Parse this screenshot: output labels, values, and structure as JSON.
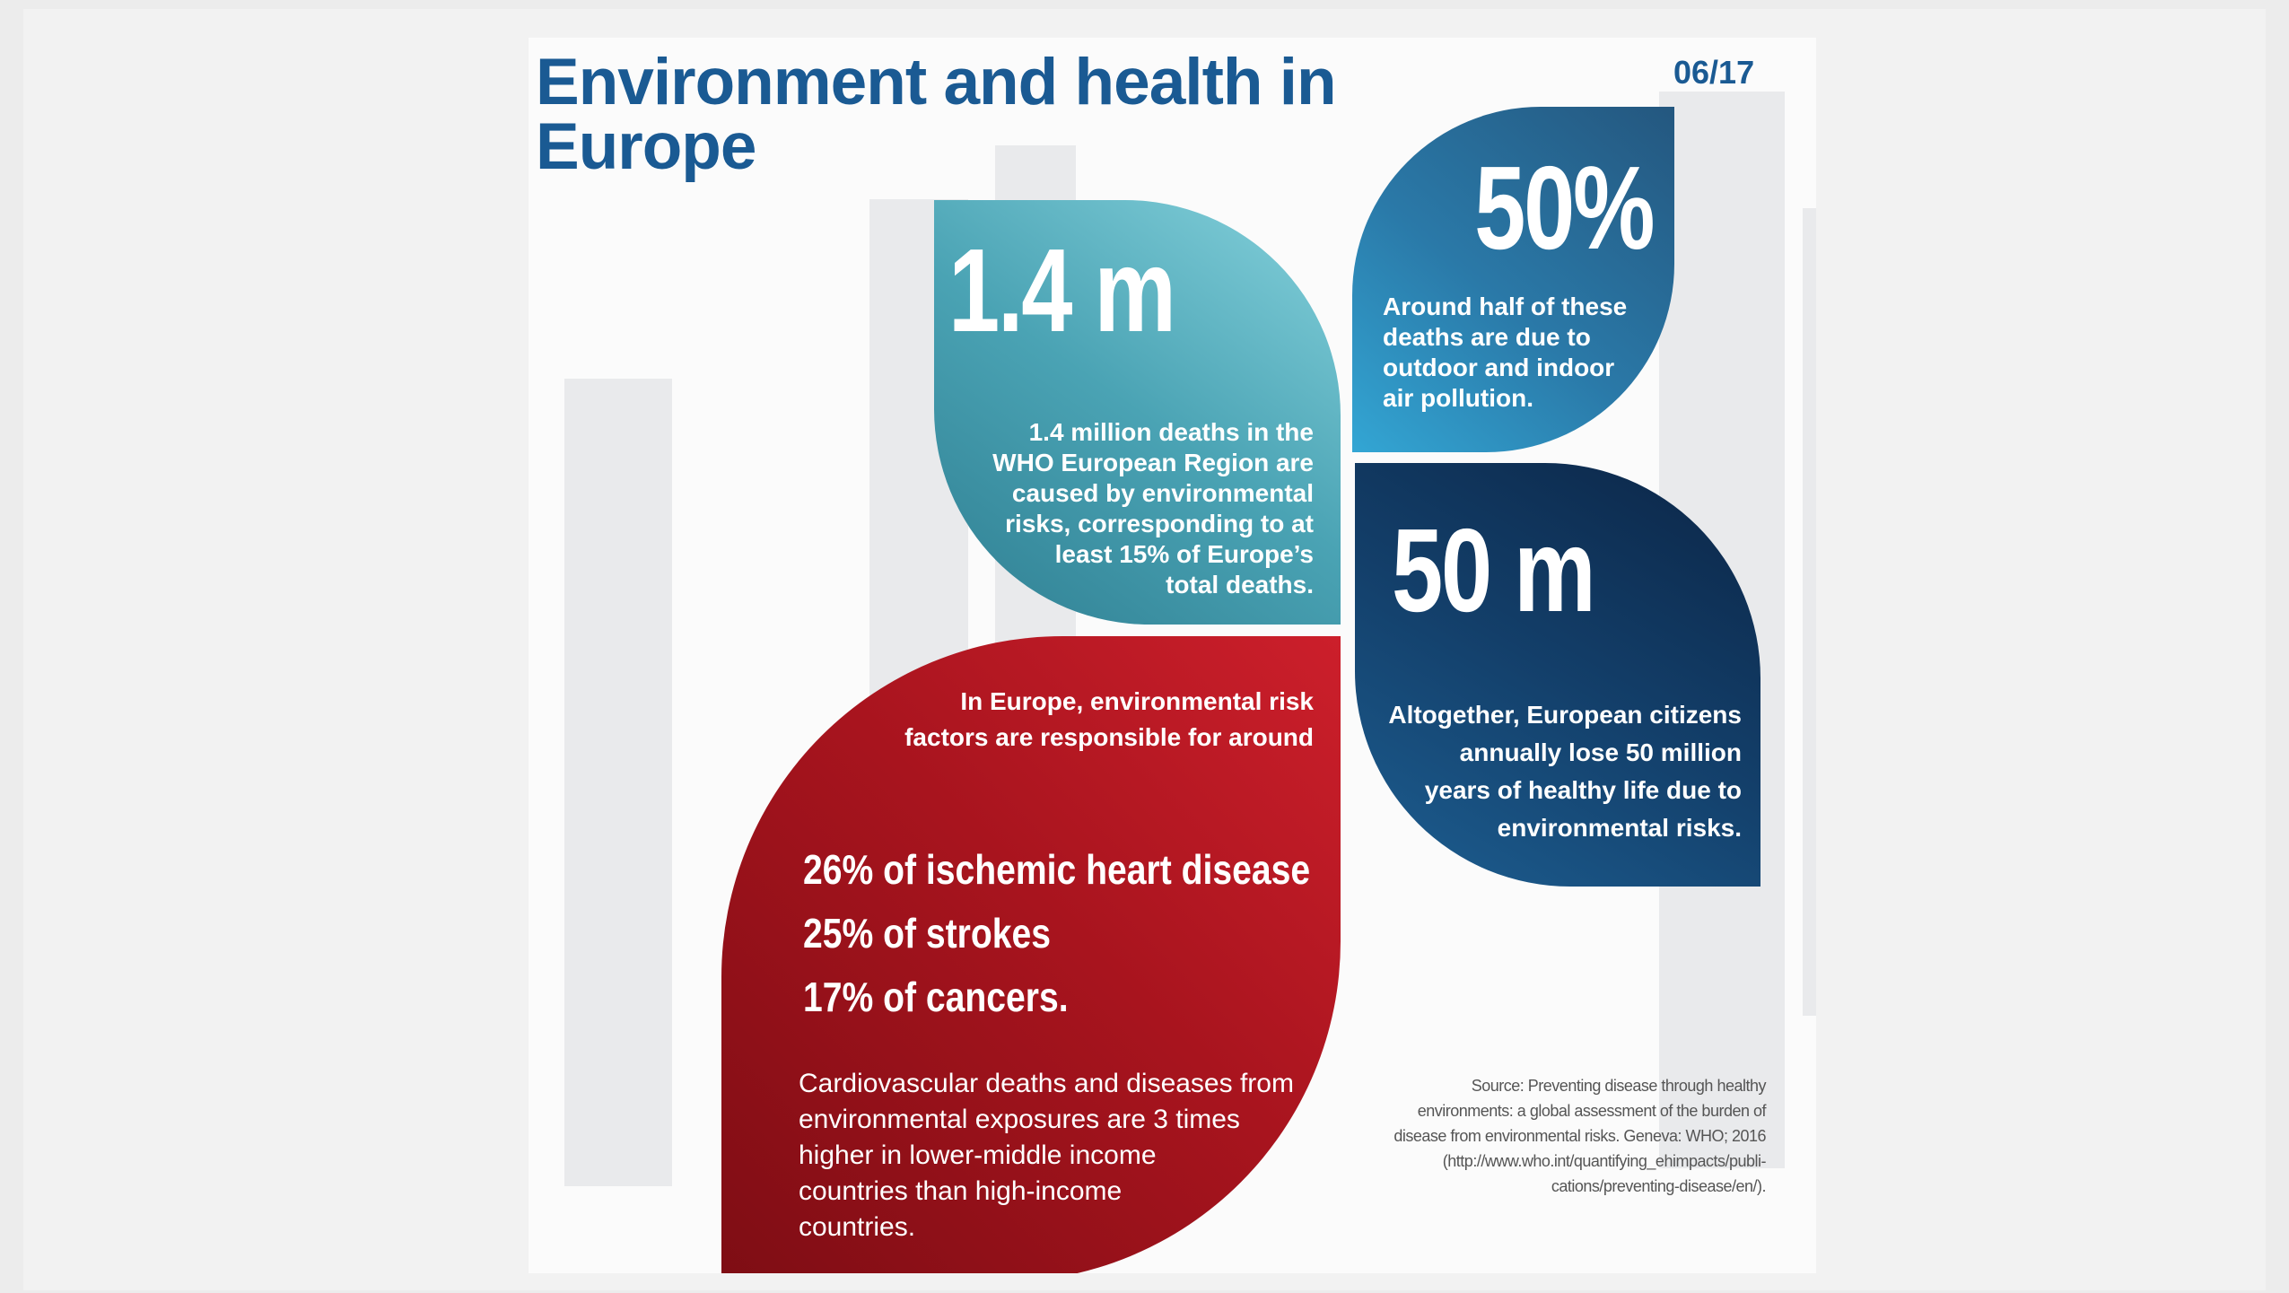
{
  "header": {
    "title": "Environment and health in Europe",
    "issue": "06/17"
  },
  "panels": [
    {
      "figure": "1.4 m",
      "text_lines": [
        "1.4 million deaths in the",
        "WHO European Region are",
        "caused by environmental",
        "risks, corresponding to at",
        "least 15% of Europe’s",
        "total deaths."
      ]
    },
    {
      "figure": "50%",
      "text_lines": [
        "Around half of these",
        "deaths are due to",
        "outdoor and indoor",
        "air pollution."
      ]
    },
    {
      "figure": "50 m",
      "text_lines": [
        "Altogether, European citizens",
        "annually lose 50 million",
        "years of healthy life due to",
        "environmental risks."
      ]
    }
  ],
  "risk_factors": {
    "intro_lines": [
      "In Europe, environmental risk",
      "factors are responsible for around"
    ],
    "stats": [
      "26% of ischemic heart disease",
      "25% of strokes",
      "17% of cancers."
    ],
    "note_lines": [
      "Cardiovascular deaths and diseases from",
      "environmental exposures are 3 times",
      "higher in lower-middle income",
      "countries than high-income",
      "countries."
    ]
  },
  "source_lines": [
    "Source: Preventing disease through healthy",
    "environments: a global assessment of the burden of",
    "disease from environmental risks. Geneva: WHO; 2016",
    "(http://www.who.int/quantifying_ehimpacts/publi-",
    "cations/preventing-disease/en/)."
  ]
}
